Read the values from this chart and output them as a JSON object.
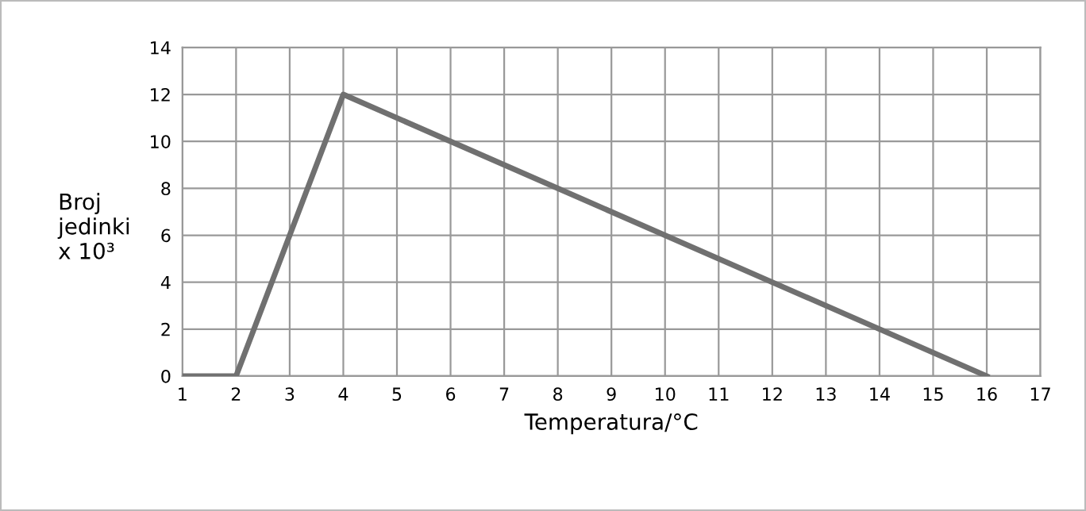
{
  "chart_data": {
    "type": "line",
    "xlabel": "Temperatura/°C",
    "ylabel": "Broj\njedinki\nx 10³",
    "x": [
      1,
      2,
      4,
      16
    ],
    "series": [
      {
        "color": "#707070",
        "values": [
          0,
          0,
          12,
          0
        ]
      }
    ],
    "xlim": [
      1,
      17
    ],
    "xticks": [
      1,
      2,
      3,
      4,
      5,
      6,
      7,
      8,
      9,
      10,
      11,
      12,
      13,
      14,
      15,
      16,
      17
    ],
    "ylim": [
      0,
      14
    ],
    "yticks": [
      0,
      2,
      4,
      6,
      8,
      10,
      12,
      14
    ],
    "grid": true,
    "marker": "none",
    "line_style": "solid",
    "legend": false
  }
}
